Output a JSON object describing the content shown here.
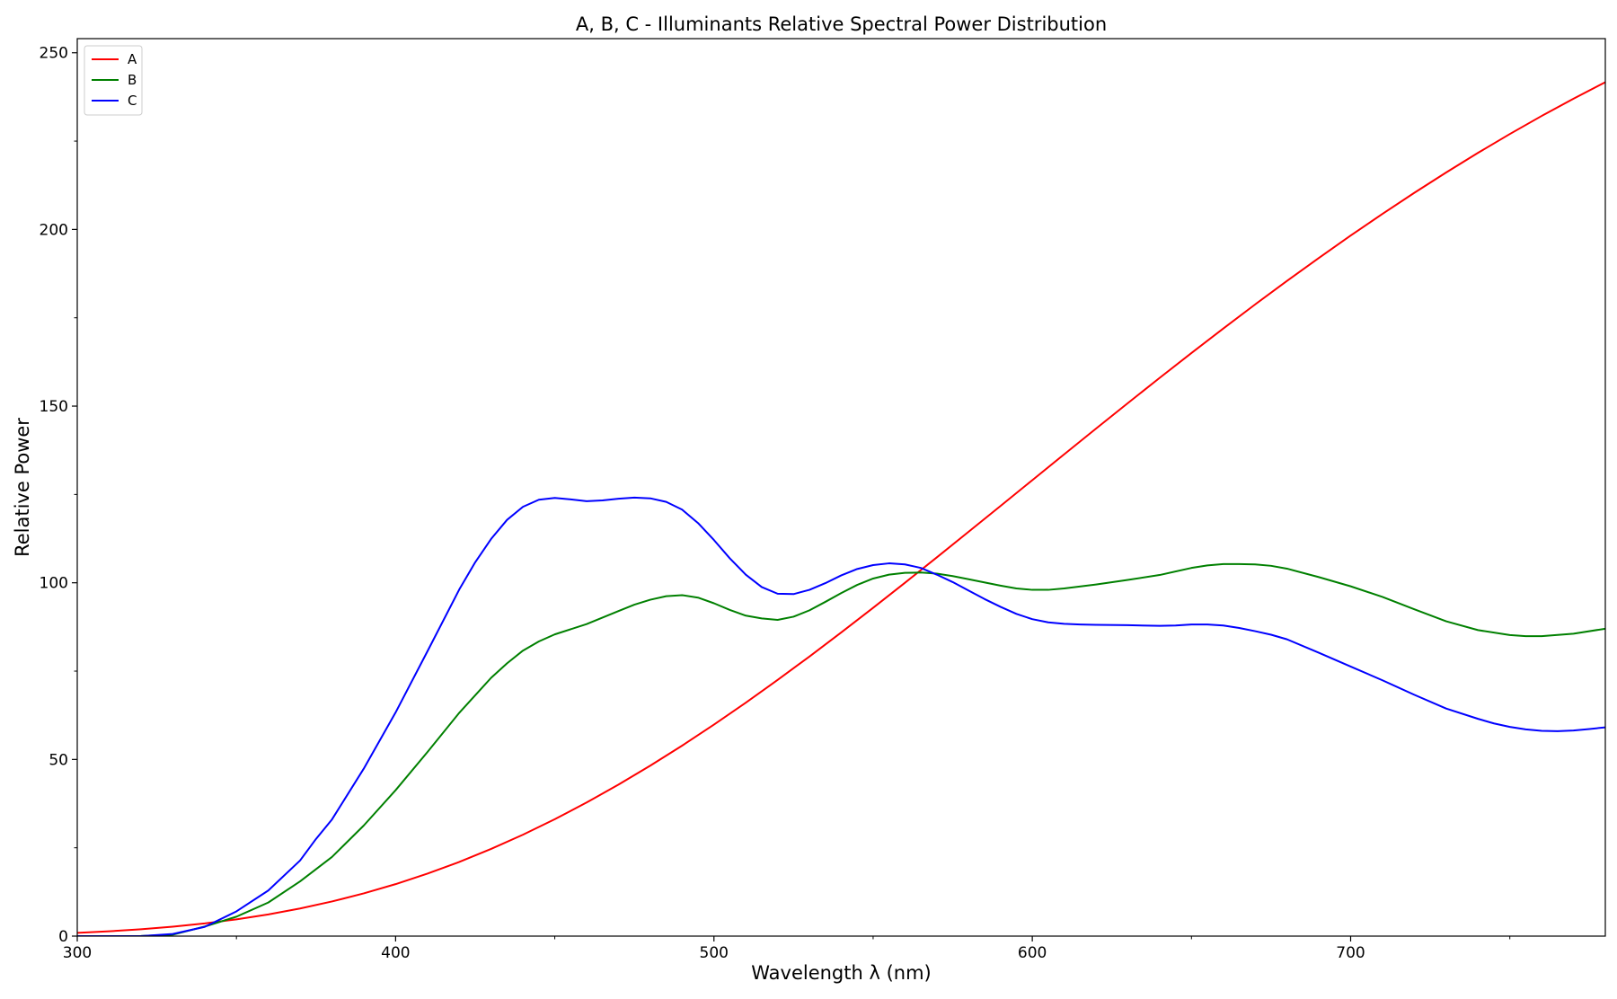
{
  "chart_data": {
    "type": "line",
    "title": "A, B, C - Illuminants Relative Spectral Power Distribution",
    "xlabel": "Wavelength λ (nm)",
    "ylabel": "Relative Power",
    "xlim": [
      300,
      780
    ],
    "ylim": [
      0,
      254
    ],
    "x_ticks": [
      300,
      400,
      500,
      600,
      700
    ],
    "x_minor_ticks": [
      350,
      450,
      550,
      650,
      750
    ],
    "y_ticks": [
      0,
      50,
      100,
      150,
      200,
      250
    ],
    "y_minor_ticks": [
      25,
      75,
      125,
      175,
      225
    ],
    "grid": false,
    "legend_position": "top-left",
    "series": [
      {
        "name": "A",
        "color": "#ff0000",
        "points": [
          [
            300,
            0.93
          ],
          [
            310,
            1.36
          ],
          [
            320,
            1.93
          ],
          [
            330,
            2.66
          ],
          [
            340,
            3.59
          ],
          [
            350,
            4.74
          ],
          [
            360,
            6.14
          ],
          [
            370,
            7.82
          ],
          [
            380,
            9.8
          ],
          [
            390,
            12.09
          ],
          [
            400,
            14.71
          ],
          [
            410,
            17.68
          ],
          [
            420,
            20.99
          ],
          [
            430,
            24.67
          ],
          [
            440,
            28.7
          ],
          [
            450,
            33.09
          ],
          [
            460,
            37.81
          ],
          [
            470,
            42.87
          ],
          [
            480,
            48.24
          ],
          [
            490,
            53.91
          ],
          [
            500,
            59.86
          ],
          [
            510,
            66.06
          ],
          [
            520,
            72.5
          ],
          [
            530,
            79.13
          ],
          [
            540,
            85.95
          ],
          [
            550,
            92.91
          ],
          [
            560,
            100.0
          ],
          [
            570,
            107.18
          ],
          [
            580,
            114.44
          ],
          [
            590,
            121.73
          ],
          [
            600,
            129.04
          ],
          [
            610,
            136.35
          ],
          [
            620,
            143.62
          ],
          [
            630,
            150.84
          ],
          [
            640,
            157.98
          ],
          [
            650,
            165.03
          ],
          [
            660,
            171.96
          ],
          [
            670,
            178.77
          ],
          [
            680,
            185.43
          ],
          [
            690,
            191.93
          ],
          [
            700,
            198.26
          ],
          [
            710,
            204.41
          ],
          [
            720,
            210.36
          ],
          [
            730,
            216.12
          ],
          [
            740,
            221.67
          ],
          [
            750,
            227.0
          ],
          [
            760,
            232.12
          ],
          [
            770,
            237.01
          ],
          [
            780,
            241.68
          ]
        ]
      },
      {
        "name": "B",
        "color": "#008000",
        "points": [
          [
            300,
            0.0
          ],
          [
            310,
            0.0
          ],
          [
            320,
            0.02
          ],
          [
            330,
            0.4
          ],
          [
            340,
            2.7
          ],
          [
            350,
            5.5
          ],
          [
            360,
            9.5
          ],
          [
            370,
            15.5
          ],
          [
            380,
            22.4
          ],
          [
            390,
            31.3
          ],
          [
            400,
            41.3
          ],
          [
            410,
            52.1
          ],
          [
            420,
            63.2
          ],
          [
            430,
            73.1
          ],
          [
            435,
            77.2
          ],
          [
            440,
            80.8
          ],
          [
            445,
            83.4
          ],
          [
            450,
            85.4
          ],
          [
            460,
            88.3
          ],
          [
            470,
            92.0
          ],
          [
            475,
            93.8
          ],
          [
            480,
            95.2
          ],
          [
            485,
            96.2
          ],
          [
            490,
            96.5
          ],
          [
            495,
            95.8
          ],
          [
            500,
            94.2
          ],
          [
            505,
            92.3
          ],
          [
            510,
            90.7
          ],
          [
            515,
            89.9
          ],
          [
            520,
            89.5
          ],
          [
            525,
            90.4
          ],
          [
            530,
            92.2
          ],
          [
            535,
            94.6
          ],
          [
            540,
            97.1
          ],
          [
            545,
            99.4
          ],
          [
            550,
            101.2
          ],
          [
            555,
            102.3
          ],
          [
            560,
            102.8
          ],
          [
            565,
            102.9
          ],
          [
            570,
            102.6
          ],
          [
            575,
            101.9
          ],
          [
            580,
            101.0
          ],
          [
            590,
            99.2
          ],
          [
            595,
            98.4
          ],
          [
            600,
            98.0
          ],
          [
            605,
            98.0
          ],
          [
            610,
            98.4
          ],
          [
            620,
            99.5
          ],
          [
            630,
            100.8
          ],
          [
            640,
            102.2
          ],
          [
            650,
            104.2
          ],
          [
            655,
            104.9
          ],
          [
            660,
            105.3
          ],
          [
            665,
            105.3
          ],
          [
            670,
            105.2
          ],
          [
            675,
            104.8
          ],
          [
            680,
            104.0
          ],
          [
            690,
            101.6
          ],
          [
            700,
            99.0
          ],
          [
            710,
            96.0
          ],
          [
            720,
            92.5
          ],
          [
            730,
            89.1
          ],
          [
            740,
            86.6
          ],
          [
            750,
            85.2
          ],
          [
            755,
            84.9
          ],
          [
            760,
            84.9
          ],
          [
            770,
            85.6
          ],
          [
            780,
            87.0
          ]
        ]
      },
      {
        "name": "C",
        "color": "#0000ff",
        "points": [
          [
            300,
            0.0
          ],
          [
            310,
            0.0
          ],
          [
            320,
            0.01
          ],
          [
            330,
            0.6
          ],
          [
            340,
            2.6
          ],
          [
            350,
            7.0
          ],
          [
            360,
            12.9
          ],
          [
            370,
            21.4
          ],
          [
            375,
            27.5
          ],
          [
            380,
            33.0
          ],
          [
            390,
            47.4
          ],
          [
            400,
            63.3
          ],
          [
            410,
            80.6
          ],
          [
            420,
            98.1
          ],
          [
            425,
            105.8
          ],
          [
            430,
            112.4
          ],
          [
            435,
            117.8
          ],
          [
            440,
            121.5
          ],
          [
            445,
            123.5
          ],
          [
            450,
            124.0
          ],
          [
            455,
            123.6
          ],
          [
            460,
            123.1
          ],
          [
            465,
            123.3
          ],
          [
            470,
            123.8
          ],
          [
            475,
            124.1
          ],
          [
            480,
            123.9
          ],
          [
            485,
            122.9
          ],
          [
            490,
            120.7
          ],
          [
            495,
            116.9
          ],
          [
            500,
            112.1
          ],
          [
            505,
            106.9
          ],
          [
            510,
            102.3
          ],
          [
            515,
            98.8
          ],
          [
            520,
            96.9
          ],
          [
            525,
            96.8
          ],
          [
            530,
            98.0
          ],
          [
            535,
            99.9
          ],
          [
            540,
            102.1
          ],
          [
            545,
            103.9
          ],
          [
            550,
            105.0
          ],
          [
            555,
            105.5
          ],
          [
            560,
            105.2
          ],
          [
            565,
            104.2
          ],
          [
            570,
            102.3
          ],
          [
            575,
            100.2
          ],
          [
            580,
            97.8
          ],
          [
            585,
            95.4
          ],
          [
            590,
            93.2
          ],
          [
            595,
            91.2
          ],
          [
            600,
            89.7
          ],
          [
            605,
            88.8
          ],
          [
            610,
            88.4
          ],
          [
            615,
            88.2
          ],
          [
            620,
            88.1
          ],
          [
            630,
            88.0
          ],
          [
            640,
            87.8
          ],
          [
            645,
            87.9
          ],
          [
            650,
            88.2
          ],
          [
            655,
            88.2
          ],
          [
            660,
            87.9
          ],
          [
            665,
            87.2
          ],
          [
            670,
            86.3
          ],
          [
            675,
            85.3
          ],
          [
            680,
            84.0
          ],
          [
            690,
            80.2
          ],
          [
            700,
            76.3
          ],
          [
            710,
            72.4
          ],
          [
            720,
            68.3
          ],
          [
            730,
            64.4
          ],
          [
            740,
            61.5
          ],
          [
            745,
            60.2
          ],
          [
            750,
            59.2
          ],
          [
            755,
            58.5
          ],
          [
            760,
            58.1
          ],
          [
            765,
            58.0
          ],
          [
            770,
            58.2
          ],
          [
            775,
            58.6
          ],
          [
            780,
            59.1
          ]
        ]
      }
    ]
  }
}
